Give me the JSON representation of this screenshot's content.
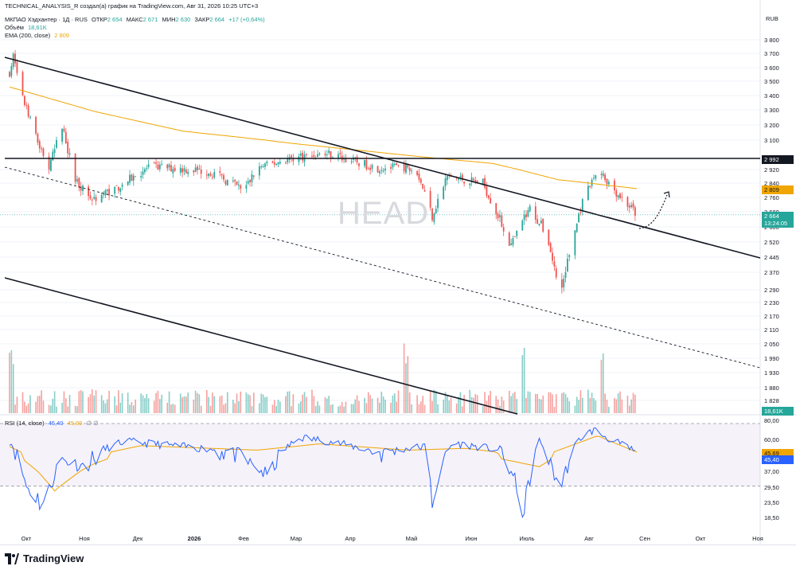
{
  "header": {
    "title": "TECHNICAL_ANALYSIS_R создал(а) график на TradingView.com, Авг 31, 2026 10:25 UTC+3"
  },
  "legend": {
    "symbol": "МКПАО Хэдхантер · 1Д · RUS",
    "open_label": "ОТКР",
    "open": "2 654",
    "high_label": "МАКС",
    "high": "2 671",
    "low_label": "МИН",
    "low": "2 630",
    "close_label": "ЗАКР",
    "close": "2 664",
    "change": "+17 (+0,64%)",
    "volume_label": "Объём",
    "volume": "18,61K",
    "ema_label": "EMA (200, close)",
    "ema": "2 809",
    "rsi_label": "RSI (14, close)",
    "rsi": "45,40",
    "rsi_ma": "45,69",
    "rsi_null": "∅ ∅"
  },
  "watermark": "HEAD",
  "currency": "RUB",
  "badges": {
    "level": "2 992",
    "ema": "2 809",
    "price": "2 664",
    "countdown": "13:24:05",
    "volume": "18,61K",
    "rsi_ma": "45,69",
    "rsi": "45,40"
  },
  "footer": {
    "brand": "TradingView"
  },
  "colors": {
    "up": "#26a69a",
    "down": "#ef5350",
    "ema": "#f0a500",
    "rsi": "#2962ff",
    "rsi_band": "#7e57c2"
  },
  "chart_data": [
    {
      "type": "candlestick",
      "ylim": [
        1828,
        3880
      ],
      "yticks": [
        "3 800",
        "3 700",
        "3 600",
        "3 500",
        "3 400",
        "3 300",
        "3 200",
        "3 100",
        "2 920",
        "2 840",
        "2 760",
        "2 680",
        "2 600",
        "2 520",
        "2 445",
        "2 370",
        "2 290",
        "2 230",
        "2 170",
        "2 110",
        "2 050",
        "1 990",
        "1 930",
        "1 880",
        "1 828"
      ],
      "xticks": [
        "Окт",
        "Ноя",
        "Дек",
        "2026",
        "Фев",
        "Мар",
        "Апр",
        "Май",
        "Июн",
        "Июль",
        "Авг",
        "Сен",
        "Окт",
        "Ноя"
      ],
      "horizontal_level": 2992,
      "ema_last": 2809,
      "last_close": 2664,
      "anchors": [
        {
          "date": "Oct 1",
          "close": 3560
        },
        {
          "date": "Oct 3",
          "close": 3680
        },
        {
          "date": "Oct 8",
          "close": 3380
        },
        {
          "date": "Oct 15",
          "close": 3120
        },
        {
          "date": "Oct 22",
          "close": 2930
        },
        {
          "date": "Oct 29",
          "close": 3190
        },
        {
          "date": "Nov 5",
          "close": 2860
        },
        {
          "date": "Nov 14",
          "close": 2750
        },
        {
          "date": "Nov 28",
          "close": 2820
        },
        {
          "date": "Dec 15",
          "close": 2940
        },
        {
          "date": "Jan 15",
          "close": 2910
        },
        {
          "date": "Feb 3",
          "close": 2800
        },
        {
          "date": "Feb 10",
          "close": 2930
        },
        {
          "date": "Mar 2",
          "close": 3000
        },
        {
          "date": "Mar 20",
          "close": 3020
        },
        {
          "date": "Apr 15",
          "close": 2930
        },
        {
          "date": "May 5",
          "close": 2940
        },
        {
          "date": "May 14",
          "close": 2660
        },
        {
          "date": "May 22",
          "close": 2880
        },
        {
          "date": "Jun 10",
          "close": 2840
        },
        {
          "date": "Jun 25",
          "close": 2500
        },
        {
          "date": "Jul 5",
          "close": 2700
        },
        {
          "date": "Jul 14",
          "close": 2560
        },
        {
          "date": "Jul 21",
          "close": 2260
        },
        {
          "date": "Aug 1",
          "close": 2700
        },
        {
          "date": "Aug 10",
          "close": 2920
        },
        {
          "date": "Aug 20",
          "close": 2790
        },
        {
          "date": "Aug 31",
          "close": 2664
        }
      ],
      "ema_anchors": [
        {
          "date": "Oct 1",
          "value": 3460
        },
        {
          "date": "Nov 15",
          "value": 3290
        },
        {
          "date": "Jan 1",
          "value": 3160
        },
        {
          "date": "Mar 1",
          "value": 3080
        },
        {
          "date": "May 1",
          "value": 3010
        },
        {
          "date": "Jun 15",
          "value": 2960
        },
        {
          "date": "Jul 20",
          "value": 2860
        },
        {
          "date": "Aug 31",
          "value": 2809
        }
      ]
    },
    {
      "type": "bar",
      "title": "Объём",
      "last_value": "18,61K",
      "peaks": [
        "Oct 2",
        "Apr 30",
        "Jul 1",
        "Aug 12"
      ]
    },
    {
      "type": "line",
      "title": "RSI (14, close)",
      "ylim": [
        18.5,
        80
      ],
      "yticks": [
        "80,00",
        "60,00",
        "45,69",
        "45,40",
        "37,00",
        "29,50",
        "23,50",
        "18,50"
      ],
      "bands": [
        30,
        70
      ],
      "rsi_last": 45.4,
      "rsi_ma_last": 45.69,
      "anchors": [
        {
          "date": "Oct 1",
          "value": 58
        },
        {
          "date": "Oct 10",
          "value": 30
        },
        {
          "date": "Oct 20",
          "value": 22
        },
        {
          "date": "Oct 28",
          "value": 45
        },
        {
          "date": "Nov 10",
          "value": 40
        },
        {
          "date": "Dec 1",
          "value": 58
        },
        {
          "date": "Jan 1",
          "value": 52
        },
        {
          "date": "Feb 1",
          "value": 46
        },
        {
          "date": "Feb 15",
          "value": 35
        },
        {
          "date": "Mar 5",
          "value": 62
        },
        {
          "date": "Mar 20",
          "value": 58
        },
        {
          "date": "Apr 15",
          "value": 46
        },
        {
          "date": "May 10",
          "value": 52
        },
        {
          "date": "May 14",
          "value": 24
        },
        {
          "date": "May 25",
          "value": 56
        },
        {
          "date": "Jun 20",
          "value": 48
        },
        {
          "date": "Jul 2",
          "value": 20
        },
        {
          "date": "Jul 10",
          "value": 58
        },
        {
          "date": "Jul 21",
          "value": 28
        },
        {
          "date": "Aug 1",
          "value": 62
        },
        {
          "date": "Aug 8",
          "value": 70
        },
        {
          "date": "Aug 15",
          "value": 62
        },
        {
          "date": "Aug 31",
          "value": 45.4
        }
      ],
      "ma_anchors": [
        {
          "date": "Oct 1",
          "value": 52
        },
        {
          "date": "Oct 25",
          "value": 28
        },
        {
          "date": "Nov 15",
          "value": 42
        },
        {
          "date": "Dec 10",
          "value": 53
        },
        {
          "date": "Feb 10",
          "value": 48
        },
        {
          "date": "Mar 15",
          "value": 55
        },
        {
          "date": "May 1",
          "value": 48
        },
        {
          "date": "Jun 1",
          "value": 50
        },
        {
          "date": "Jul 10",
          "value": 40
        },
        {
          "date": "Aug 10",
          "value": 64
        },
        {
          "date": "Aug 31",
          "value": 45.69
        }
      ]
    }
  ]
}
